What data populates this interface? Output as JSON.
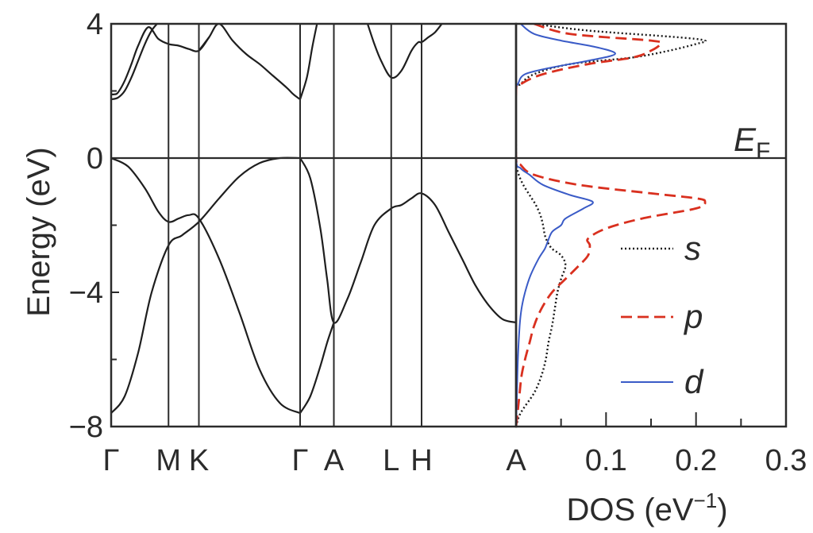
{
  "chart_data": [
    {
      "type": "line",
      "panel": "band-structure",
      "ylabel": "Energy (eV)",
      "ylim": [
        -8,
        4
      ],
      "yticks": [
        {
          "value": 4,
          "label": "4"
        },
        {
          "value": 0,
          "label": "0"
        },
        {
          "value": -4,
          "label": "−4"
        },
        {
          "value": -8,
          "label": "−8"
        }
      ],
      "xlim": [
        0,
        6
      ],
      "kpoints": [
        {
          "x": 0,
          "label": "Γ"
        },
        {
          "x": 0.85,
          "label": "M"
        },
        {
          "x": 1.3,
          "label": "K"
        },
        {
          "x": 2.8,
          "label": "Γ"
        },
        {
          "x": 3.3,
          "label": "A"
        },
        {
          "x": 4.15,
          "label": "L"
        },
        {
          "x": 4.6,
          "label": "H"
        },
        {
          "x": 6.0,
          "label": "A"
        }
      ],
      "bands": [
        {
          "name": "",
          "x": [
            0,
            0.25,
            0.5,
            0.7,
            0.85,
            1.0,
            1.15,
            1.3,
            1.6,
            1.9,
            2.2,
            2.5,
            2.8
          ],
          "y": [
            0,
            -0.25,
            -0.9,
            -1.6,
            -1.9,
            -1.8,
            -1.7,
            -1.8,
            -3.0,
            -4.6,
            -6.3,
            -7.3,
            -7.6
          ]
        },
        {
          "name": "",
          "x": [
            0,
            0.2,
            0.4,
            0.6,
            0.85,
            1.05,
            1.3,
            1.6,
            1.9,
            2.2,
            2.5,
            2.8
          ],
          "y": [
            -7.6,
            -7.1,
            -5.8,
            -4.0,
            -2.6,
            -2.3,
            -1.9,
            -1.2,
            -0.55,
            -0.15,
            0,
            0
          ]
        },
        {
          "name": "",
          "x": [
            2.8,
            2.95,
            3.1,
            3.2,
            3.3,
            3.5,
            3.7,
            3.9,
            4.15,
            4.3,
            4.45,
            4.6,
            4.8,
            5.0,
            5.2,
            5.4,
            5.6,
            5.8,
            6.0
          ],
          "y": [
            0,
            -0.6,
            -2.1,
            -3.6,
            -4.9,
            -4.2,
            -3.1,
            -2.0,
            -1.5,
            -1.4,
            -1.2,
            -1.05,
            -1.4,
            -2.2,
            -3.0,
            -3.8,
            -4.4,
            -4.8,
            -4.9
          ]
        },
        {
          "name": "",
          "x": [
            2.8,
            2.95,
            3.1,
            3.2,
            3.3
          ],
          "y": [
            -7.6,
            -7.1,
            -6.2,
            -5.5,
            -4.9
          ]
        },
        {
          "name": "",
          "x": [
            0,
            0.05,
            0.1,
            0.2,
            0.3,
            0.4,
            0.55,
            0.7,
            0.85,
            1.0,
            1.15,
            1.3,
            1.45
          ],
          "y": [
            1.9,
            1.9,
            1.95,
            2.3,
            2.8,
            3.35,
            3.9,
            3.55,
            3.4,
            3.35,
            3.25,
            3.2,
            3.6
          ]
        },
        {
          "name": "",
          "x": [
            0,
            0.1,
            0.2,
            0.3,
            0.4,
            0.5,
            0.6,
            0.68
          ],
          "y": [
            1.75,
            1.8,
            2.0,
            2.4,
            2.9,
            3.4,
            3.8,
            4.0
          ]
        },
        {
          "name": "",
          "x": [
            1.3,
            1.45,
            1.6,
            1.8,
            2.0,
            2.2,
            2.4,
            2.6,
            2.7,
            2.8
          ],
          "y": [
            3.2,
            3.6,
            4.0,
            3.5,
            3.1,
            2.8,
            2.45,
            2.1,
            1.9,
            1.75
          ]
        },
        {
          "name": "",
          "x": [
            2.8,
            2.9,
            2.98,
            3.05
          ],
          "y": [
            1.75,
            2.4,
            3.3,
            4.0
          ]
        },
        {
          "name": "",
          "x": [
            3.8,
            3.9,
            4.0,
            4.15,
            4.3,
            4.45,
            4.55,
            4.6,
            4.7,
            4.8,
            4.9
          ],
          "y": [
            4.0,
            3.4,
            2.9,
            2.4,
            2.6,
            3.2,
            3.45,
            3.45,
            3.6,
            3.75,
            4.0
          ]
        }
      ],
      "reference_lines": [
        {
          "axis": "y",
          "value": 0,
          "label": "E",
          "label_subscript": "F"
        }
      ]
    },
    {
      "type": "line",
      "panel": "density-of-states",
      "xlabel": "DOS (eV",
      "xlabel_superscript": "−1",
      "xlabel_close": ")",
      "xlim": [
        0,
        0.3
      ],
      "ylim": [
        -8,
        4
      ],
      "xticks": [
        {
          "value": 0.1,
          "label": "0.1"
        },
        {
          "value": 0.2,
          "label": "0.2"
        },
        {
          "value": 0.3,
          "label": "0.3"
        }
      ],
      "legend_position": "bottom-right",
      "series": [
        {
          "name": "s",
          "style": "dotted",
          "color": "#1a1a1a",
          "energy": [
            -8.0,
            -7.6,
            -7.0,
            -6.5,
            -6.0,
            -5.5,
            -5.0,
            -4.5,
            -4.0,
            -3.6,
            -3.2,
            -2.9,
            -2.7,
            -2.5,
            -2.3,
            -2.0,
            -1.7,
            -1.4,
            -1.1,
            -0.8,
            -0.5,
            -0.2,
            0.0,
            2.0,
            2.2,
            2.5,
            2.8,
            3.0,
            3.2,
            3.4,
            3.5,
            3.6,
            3.8,
            4.0
          ],
          "dos": [
            0.0,
            0.005,
            0.02,
            0.028,
            0.033,
            0.036,
            0.04,
            0.043,
            0.046,
            0.05,
            0.055,
            0.05,
            0.04,
            0.035,
            0.032,
            0.03,
            0.027,
            0.022,
            0.015,
            0.008,
            0.003,
            0.0,
            0.0,
            0.0,
            0.005,
            0.02,
            0.06,
            0.13,
            0.17,
            0.2,
            0.21,
            0.18,
            0.08,
            0.02
          ]
        },
        {
          "name": "p",
          "style": "dashed",
          "color": "#d9301f",
          "energy": [
            -8.0,
            -7.5,
            -7.0,
            -6.5,
            -6.0,
            -5.5,
            -5.0,
            -4.5,
            -4.0,
            -3.6,
            -3.2,
            -2.9,
            -2.6,
            -2.4,
            -2.1,
            -1.8,
            -1.5,
            -1.3,
            -1.2,
            -1.05,
            -0.8,
            -0.5,
            -0.2,
            0.0,
            2.0,
            2.2,
            2.5,
            2.8,
            3.0,
            3.2,
            3.4,
            3.5,
            3.7,
            4.0
          ],
          "dos": [
            0.0,
            0.002,
            0.004,
            0.006,
            0.01,
            0.015,
            0.02,
            0.028,
            0.04,
            0.055,
            0.07,
            0.08,
            0.082,
            0.08,
            0.1,
            0.14,
            0.2,
            0.21,
            0.2,
            0.15,
            0.07,
            0.02,
            0.005,
            0.0,
            0.0,
            0.005,
            0.03,
            0.08,
            0.13,
            0.15,
            0.16,
            0.15,
            0.06,
            0.02
          ]
        },
        {
          "name": "d",
          "style": "solid",
          "color": "#3a5bc7",
          "energy": [
            -8.0,
            -7.0,
            -6.0,
            -5.0,
            -4.5,
            -4.0,
            -3.5,
            -3.0,
            -2.7,
            -2.5,
            -2.2,
            -2.0,
            -1.8,
            -1.5,
            -1.3,
            -1.1,
            -0.8,
            -0.5,
            -0.3,
            0.0,
            2.0,
            2.2,
            2.5,
            2.7,
            2.9,
            3.1,
            3.3,
            3.5,
            3.7,
            4.0
          ],
          "dos": [
            0.0,
            0.001,
            0.002,
            0.004,
            0.006,
            0.01,
            0.016,
            0.025,
            0.032,
            0.035,
            0.04,
            0.05,
            0.055,
            0.075,
            0.085,
            0.06,
            0.03,
            0.015,
            0.005,
            0.0,
            0.0,
            0.002,
            0.01,
            0.04,
            0.08,
            0.11,
            0.09,
            0.05,
            0.02,
            0.005
          ]
        }
      ]
    }
  ]
}
